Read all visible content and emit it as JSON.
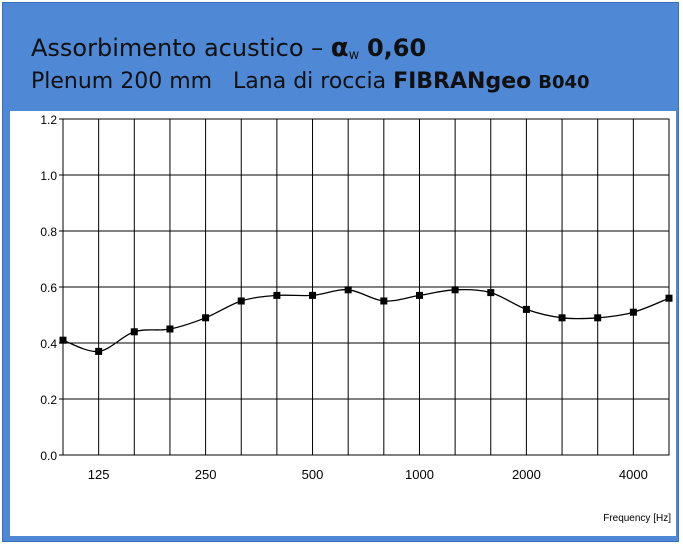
{
  "title": {
    "line1_text": "Assorbimento acustico – ",
    "alpha_symbol": "α",
    "alpha_sub": "w",
    "alpha_value": "0,60",
    "line2_prefix": "Plenum 200 mm   Lana di roccia ",
    "product_name": "FIBRANgeo",
    "product_code": "B040"
  },
  "colors": {
    "frame": "#4f88d4",
    "plot_bg": "#ffffff",
    "grid": "#000000",
    "series": "#000000"
  },
  "chart_data": {
    "type": "line",
    "title": "Assorbimento acustico – αw 0,60",
    "subtitle": "Plenum 200 mm Lana di roccia FIBRANgeo B040",
    "xlabel": "Frequency [Hz]",
    "ylabel": "",
    "ylim": [
      0,
      1.2
    ],
    "yticks": [
      "0.0",
      "0.2",
      "0.4",
      "0.6",
      "0.8",
      "1.0",
      "1.2"
    ],
    "x": [
      100,
      125,
      160,
      200,
      250,
      315,
      400,
      500,
      630,
      800,
      1000,
      1250,
      1600,
      2000,
      2500,
      3150,
      4000,
      5000
    ],
    "xtick_labels": [
      "125",
      "250",
      "500",
      "1000",
      "2000",
      "4000"
    ],
    "xtick_values": [
      125,
      250,
      500,
      1000,
      2000,
      4000
    ],
    "grid": true,
    "marker": "square",
    "series": [
      {
        "values": [
          0.41,
          0.37,
          0.44,
          0.45,
          0.49,
          0.55,
          0.57,
          0.57,
          0.59,
          0.55,
          0.57,
          0.59,
          0.58,
          0.52,
          0.49,
          0.49,
          0.51,
          0.56
        ]
      }
    ]
  }
}
